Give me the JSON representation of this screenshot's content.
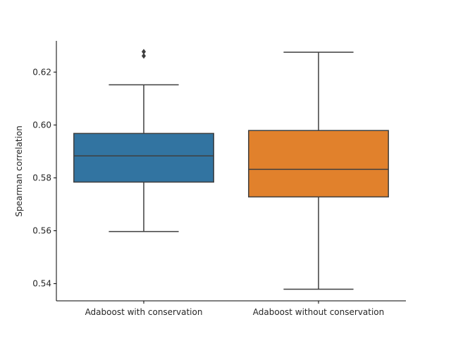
{
  "chart_data": {
    "type": "box",
    "title": "",
    "xlabel": "",
    "ylabel": "Spearman correlation",
    "ylim": [
      0.5335,
      0.6318
    ],
    "yticks": [
      0.54,
      0.56,
      0.58,
      0.6,
      0.62
    ],
    "ytick_labels": [
      "0.54",
      "0.56",
      "0.58",
      "0.60",
      "0.62"
    ],
    "grid": false,
    "categories": [
      "Adaboost with conservation",
      "Adaboost without conservation"
    ],
    "boxes": [
      {
        "category": "Adaboost with conservation",
        "whisker_low": 0.5597,
        "q1": 0.5784,
        "median": 0.5883,
        "q3": 0.5968,
        "whisker_high": 0.6152,
        "outliers": [
          0.6261,
          0.6277
        ],
        "color": "#3274a1"
      },
      {
        "category": "Adaboost without conservation",
        "whisker_low": 0.5379,
        "q1": 0.5728,
        "median": 0.5832,
        "q3": 0.5979,
        "whisker_high": 0.6275,
        "outliers": [],
        "color": "#e1812c"
      }
    ]
  }
}
